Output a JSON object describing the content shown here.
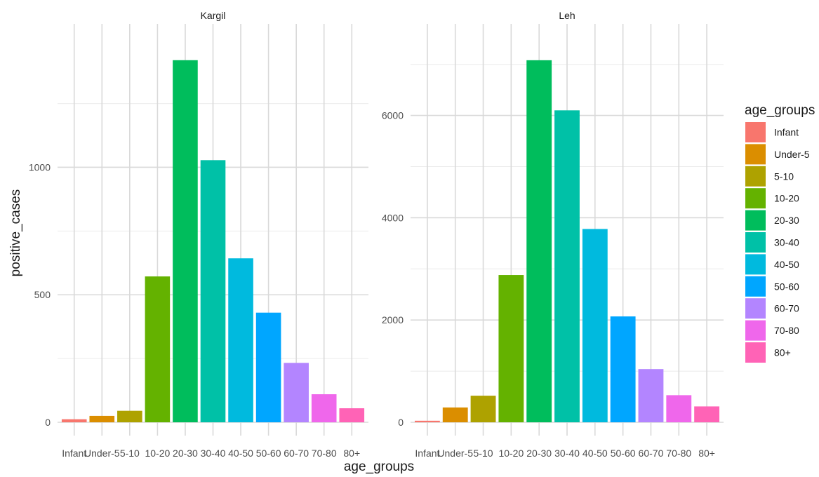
{
  "chart_data": {
    "type": "bar",
    "facet_variable": "",
    "xlabel": "age_groups",
    "ylabel": "positive_cases",
    "categories": [
      "Infant",
      "Under-5",
      "5-10",
      "10-20",
      "20-30",
      "30-40",
      "40-50",
      "50-60",
      "60-70",
      "70-80",
      "80+"
    ],
    "colors": [
      "#F8766D",
      "#DB8E00",
      "#AEA200",
      "#64B200",
      "#00BD5C",
      "#00C1A7",
      "#00BADE",
      "#00A6FF",
      "#B385FF",
      "#EF67EB",
      "#FF63B6"
    ],
    "legend": {
      "title": "age_groups",
      "position": "right"
    },
    "grid": true,
    "panels": [
      {
        "title": "Kargil",
        "ylim": [
          0,
          1480
        ],
        "yticks": [
          0,
          500,
          1000
        ],
        "values": [
          12,
          25,
          45,
          572,
          1420,
          1028,
          643,
          430,
          233,
          110,
          55
        ]
      },
      {
        "title": "Leh",
        "ylim": [
          0,
          7380
        ],
        "yticks": [
          0,
          2000,
          4000,
          6000
        ],
        "values": [
          30,
          290,
          520,
          2880,
          7080,
          6100,
          3780,
          2070,
          1040,
          530,
          310
        ]
      }
    ]
  }
}
